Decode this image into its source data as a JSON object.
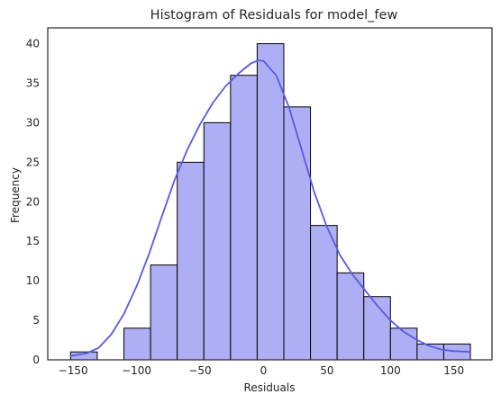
{
  "chart_data": {
    "type": "histogram",
    "title": "Histogram of Residuals for model_few",
    "xlabel": "Residuals",
    "ylabel": "Frequency",
    "xlim": [
      -170,
      180
    ],
    "ylim": [
      0,
      42
    ],
    "xticks": [
      -150,
      -100,
      -50,
      0,
      50,
      100,
      150
    ],
    "yticks": [
      0,
      5,
      10,
      15,
      20,
      25,
      30,
      35,
      40
    ],
    "grid": false,
    "bar_color": "#aeaef5",
    "edge_color": "#000000",
    "kde_color": "#5a5ae0",
    "bins": [
      {
        "x0": -152,
        "x1": -131,
        "count": 1
      },
      {
        "x0": -131,
        "x1": -110,
        "count": 0
      },
      {
        "x0": -110,
        "x1": -89,
        "count": 4
      },
      {
        "x0": -89,
        "x1": -68,
        "count": 12
      },
      {
        "x0": -68,
        "x1": -47,
        "count": 25
      },
      {
        "x0": -47,
        "x1": -26,
        "count": 30
      },
      {
        "x0": -26,
        "x1": -5,
        "count": 36
      },
      {
        "x0": -5,
        "x1": 16,
        "count": 40
      },
      {
        "x0": 16,
        "x1": 37,
        "count": 32
      },
      {
        "x0": 37,
        "x1": 58,
        "count": 17
      },
      {
        "x0": 58,
        "x1": 79,
        "count": 11
      },
      {
        "x0": 79,
        "x1": 100,
        "count": 8
      },
      {
        "x0": 100,
        "x1": 121,
        "count": 4
      },
      {
        "x0": 121,
        "x1": 142,
        "count": 2
      },
      {
        "x0": 142,
        "x1": 163,
        "count": 2
      }
    ],
    "kde": [
      [
        -152,
        0.5
      ],
      [
        -140,
        0.8
      ],
      [
        -130,
        1.5
      ],
      [
        -120,
        3.2
      ],
      [
        -110,
        5.8
      ],
      [
        -100,
        9.3
      ],
      [
        -90,
        13.5
      ],
      [
        -80,
        18.2
      ],
      [
        -70,
        22.8
      ],
      [
        -60,
        26.6
      ],
      [
        -50,
        29.8
      ],
      [
        -40,
        32.5
      ],
      [
        -30,
        34.6
      ],
      [
        -20,
        36.2
      ],
      [
        -10,
        37.5
      ],
      [
        -4,
        37.9
      ],
      [
        0,
        37.8
      ],
      [
        10,
        36.0
      ],
      [
        20,
        32.0
      ],
      [
        30,
        26.6
      ],
      [
        40,
        21.2
      ],
      [
        50,
        16.8
      ],
      [
        60,
        13.3
      ],
      [
        70,
        10.8
      ],
      [
        80,
        8.8
      ],
      [
        90,
        6.8
      ],
      [
        100,
        5.0
      ],
      [
        110,
        3.6
      ],
      [
        120,
        2.6
      ],
      [
        130,
        1.8
      ],
      [
        140,
        1.3
      ],
      [
        150,
        1.1
      ],
      [
        163,
        1.0
      ]
    ]
  }
}
